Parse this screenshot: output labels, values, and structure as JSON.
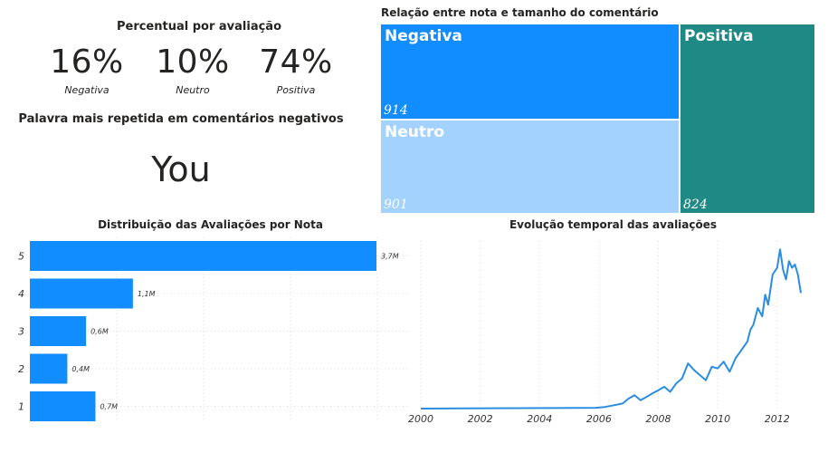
{
  "kpi": {
    "title": "Percentual por avaliação",
    "items": [
      {
        "value": "16%",
        "label": "Negativa"
      },
      {
        "value": "10%",
        "label": "Neutro"
      },
      {
        "value": "74%",
        "label": "Positiva"
      }
    ]
  },
  "word": {
    "title": "Palavra mais repetida em comentários negativos",
    "value": "You"
  },
  "colors": {
    "blue": "#118DFF",
    "light_blue": "#A3D2FF",
    "teal": "#1F8986",
    "line": "#2B8DE0",
    "grid": "#dcdcdc"
  },
  "chart_data": [
    {
      "type": "treemap",
      "title": "Relação entre nota e tamanho do comentário",
      "items": [
        {
          "name": "Negativa",
          "value": 914,
          "color": "#118DFF"
        },
        {
          "name": "Neutro",
          "value": 901,
          "color": "#A3D2FF"
        },
        {
          "name": "Positiva",
          "value": 824,
          "color": "#1F8986"
        }
      ]
    },
    {
      "type": "bar",
      "orientation": "horizontal",
      "title": "Distribuição das Avaliações por Nota",
      "categories": [
        "5",
        "4",
        "3",
        "2",
        "1"
      ],
      "values": [
        3.7,
        1.1,
        0.6,
        0.4,
        0.7
      ],
      "labels": [
        "3,7M",
        "1,1M",
        "0,6M",
        "0,4M",
        "0,7M"
      ],
      "unit": "M",
      "xlim": [
        0,
        4
      ]
    },
    {
      "type": "line",
      "title": "Evolução temporal das avaliações",
      "xticks": [
        "2000",
        "2002",
        "2004",
        "2006",
        "2008",
        "2010",
        "2012"
      ],
      "xlim": [
        2000,
        2012.8
      ],
      "ylim": [
        0,
        100
      ],
      "x": [
        2000.0,
        2005.9,
        2006.2,
        2006.5,
        2006.8,
        2007.0,
        2007.2,
        2007.4,
        2007.6,
        2007.8,
        2008.0,
        2008.2,
        2008.4,
        2008.6,
        2008.8,
        2009.0,
        2009.2,
        2009.4,
        2009.6,
        2009.8,
        2010.0,
        2010.2,
        2010.4,
        2010.6,
        2010.8,
        2011.0,
        2011.1,
        2011.2,
        2011.35,
        2011.5,
        2011.6,
        2011.7,
        2011.85,
        2012.0,
        2012.1,
        2012.2,
        2012.3,
        2012.4,
        2012.5,
        2012.6,
        2012.7,
        2012.8
      ],
      "y": [
        0,
        0.5,
        1,
        2,
        3,
        6,
        8,
        5,
        7,
        9,
        11,
        13,
        10,
        15,
        18,
        27,
        23,
        20,
        17,
        25,
        24,
        28,
        22,
        30,
        35,
        40,
        47,
        50,
        60,
        55,
        68,
        62,
        80,
        84,
        95,
        83,
        77,
        88,
        84,
        86,
        80,
        69
      ]
    }
  ]
}
